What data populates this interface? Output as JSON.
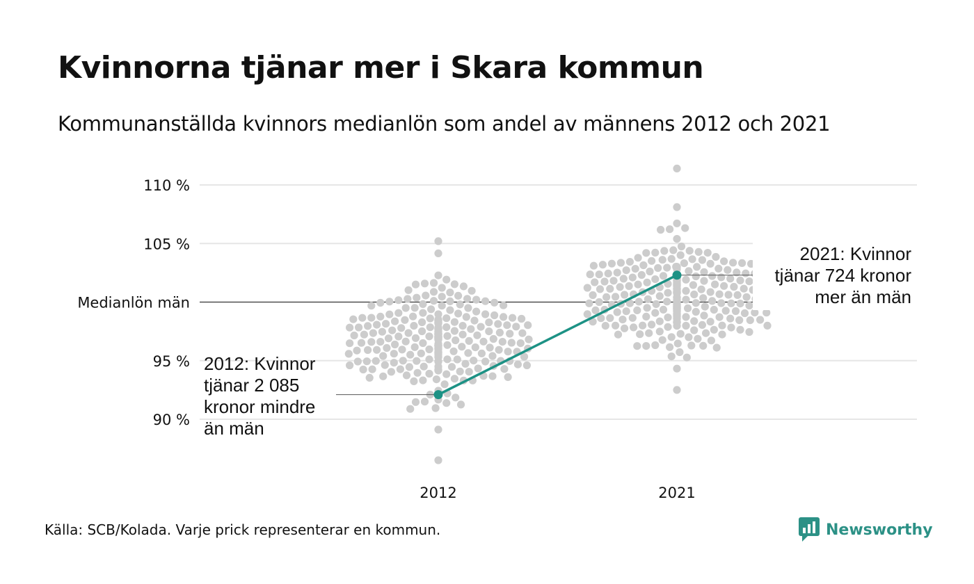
{
  "title": "Kvinnorna tjänar mer i Skara kommun",
  "subtitle": "Kommunanställda kvinnors medianlön som andel av männens 2012 och 2021",
  "source": "Källa: SCB/Kolada. Varje prick representerar en kommun.",
  "brand": "Newsworthy",
  "colors": {
    "highlight": "#1d9285",
    "dots": "#cccccc",
    "grid": "#e6e6e6",
    "reference": "#333333",
    "brand": "#2c9186"
  },
  "chart_data": {
    "type": "scatter",
    "subtype": "beeswarm",
    "title": "",
    "xlabel": "",
    "ylabel": "",
    "categories": [
      "2012",
      "2021"
    ],
    "y_ticks": [
      {
        "value": 90,
        "label": "90 %"
      },
      {
        "value": 95,
        "label": "95 %"
      },
      {
        "value": 100,
        "label": "Medianlön män"
      },
      {
        "value": 105,
        "label": "105 %"
      },
      {
        "value": 110,
        "label": "110 %"
      }
    ],
    "ylim": [
      87,
      111.5
    ],
    "reference_line": 100,
    "grid": true,
    "distributions": [
      {
        "category": "2012",
        "center": 96.5,
        "spread": 2.5,
        "min": 86.5,
        "max": 105.2,
        "count": 290
      },
      {
        "category": "2021",
        "center": 100.4,
        "spread": 2.2,
        "min": 92.5,
        "max": 111.4,
        "count": 290
      }
    ],
    "highlight": {
      "name": "Skara",
      "values": [
        {
          "x": "2012",
          "y": 92.1
        },
        {
          "x": "2021",
          "y": 102.3
        }
      ]
    },
    "annotations": [
      {
        "x": "2012",
        "lines": [
          "2012: Kvinnor",
          "tjänar 2 085",
          "kronor mindre",
          "än män"
        ]
      },
      {
        "x": "2021",
        "lines": [
          "2021: Kvinnor",
          "tjänar 724 kronor",
          "mer än män"
        ]
      }
    ]
  }
}
